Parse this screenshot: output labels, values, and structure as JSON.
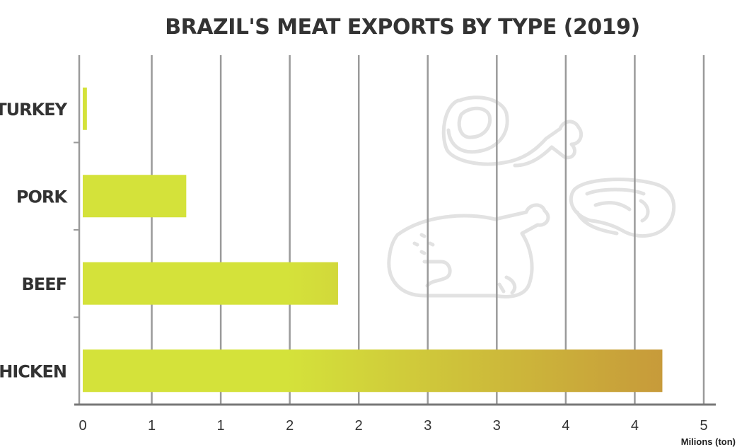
{
  "chart_data": {
    "type": "bar",
    "orientation": "horizontal",
    "title": "BRAZIL'S MEAT EXPORTS BY TYPE (2019)",
    "xlabel": "Milions (ton)",
    "ylabel": "",
    "categories": [
      "TURKEY",
      "PORK",
      "BEEF",
      "CHICKEN"
    ],
    "values": [
      0.03,
      0.75,
      1.85,
      4.2
    ],
    "xlim": [
      0,
      4.5
    ],
    "xtick_values": [
      0,
      0.5,
      1,
      1.5,
      2,
      2.5,
      3,
      3.5,
      4,
      4.5
    ],
    "xtick_labels": [
      "0",
      "1",
      "1",
      "2",
      "2",
      "3",
      "3",
      "4",
      "4",
      "5"
    ],
    "grid": true,
    "colors": {
      "bar_start": "#d4e23a",
      "bar_end": "#c79a3a",
      "grid": "#9a9a9a"
    },
    "decoration_icons": [
      "chicken-leg-icon",
      "steak-icon",
      "roast-chicken-icon"
    ]
  }
}
